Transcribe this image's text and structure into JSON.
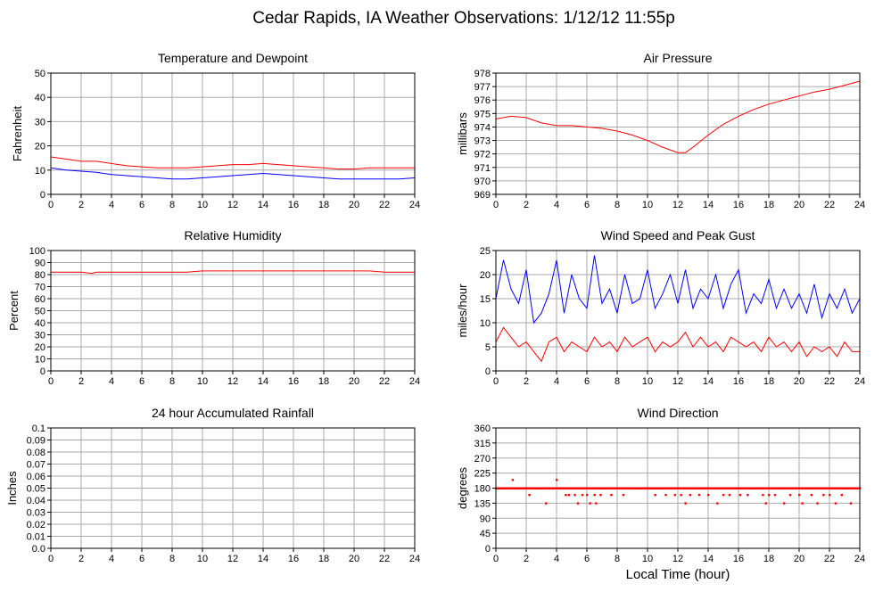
{
  "page": {
    "title": "Cedar Rapids, IA Weather Observations: 1/12/12 11:55p",
    "xlabel": "Local Time (hour)",
    "colors": {
      "red": "#ff0000",
      "blue": "#0000ff",
      "grid": "#aaaaaa",
      "frame": "#000000"
    }
  },
  "chart_data": [
    {
      "id": "temp",
      "type": "line",
      "title": "Temperature and Dewpoint",
      "xlabel": "",
      "ylabel": "Fahrenheit",
      "xlim": [
        0,
        24
      ],
      "ylim": [
        0,
        55
      ],
      "xticks": [
        "0",
        "2",
        "4",
        "6",
        "8",
        "10",
        "12",
        "14",
        "16",
        "18",
        "20",
        "22",
        "24"
      ],
      "yticks": [
        "0",
        "10",
        "20",
        "30",
        "40",
        "50"
      ],
      "grid": true,
      "series": [
        {
          "color": "#ff0000",
          "x": [
            0,
            1,
            2,
            3,
            4,
            5,
            6,
            7,
            8,
            9,
            10,
            11,
            12,
            13,
            14,
            15,
            16,
            17,
            18,
            19,
            20,
            21,
            22,
            23,
            24
          ],
          "values": [
            17,
            16,
            15,
            15,
            14,
            13,
            12.5,
            12,
            12,
            12,
            12.5,
            13,
            13.5,
            13.5,
            14,
            13.5,
            13,
            12.5,
            12,
            11.5,
            11.5,
            12,
            12,
            12,
            12
          ]
        },
        {
          "color": "#0000ff",
          "x": [
            0,
            1,
            2,
            3,
            4,
            5,
            6,
            7,
            8,
            9,
            10,
            11,
            12,
            13,
            14,
            15,
            16,
            17,
            18,
            19,
            20,
            21,
            22,
            23,
            24
          ],
          "values": [
            12,
            11,
            10.5,
            10,
            9,
            8.5,
            8,
            7.5,
            7,
            7,
            7.5,
            8,
            8.5,
            9,
            9.5,
            9,
            8.5,
            8,
            7.5,
            7,
            7,
            7,
            7,
            7,
            7.5
          ]
        }
      ]
    },
    {
      "id": "pressure",
      "type": "line",
      "title": "Air Pressure",
      "xlabel": "",
      "ylabel": "millibars",
      "xlim": [
        0,
        24
      ],
      "ylim": [
        969,
        978
      ],
      "xticks": [
        "0",
        "2",
        "4",
        "6",
        "8",
        "10",
        "12",
        "14",
        "16",
        "18",
        "20",
        "22",
        "24"
      ],
      "yticks": [
        "969",
        "970",
        "971",
        "972",
        "973",
        "974",
        "975",
        "976",
        "977",
        "978"
      ],
      "grid": true,
      "series": [
        {
          "color": "#ff0000",
          "x": [
            0,
            1,
            2,
            3,
            4,
            5,
            6,
            7,
            8,
            9,
            10,
            11,
            12,
            12.5,
            13,
            14,
            15,
            16,
            17,
            18,
            19,
            20,
            21,
            22,
            23,
            24
          ],
          "values": [
            974.6,
            974.8,
            974.7,
            974.3,
            974.1,
            974.1,
            974.0,
            973.9,
            973.7,
            973.4,
            973.0,
            972.5,
            972.1,
            972.1,
            972.5,
            973.4,
            974.2,
            974.8,
            975.3,
            975.7,
            976.0,
            976.3,
            976.6,
            976.8,
            977.1,
            977.4
          ]
        }
      ]
    },
    {
      "id": "humidity",
      "type": "line",
      "title": "Relative Humidity",
      "xlabel": "",
      "ylabel": "Percent",
      "xlim": [
        0,
        24
      ],
      "ylim": [
        0,
        100
      ],
      "xticks": [
        "0",
        "2",
        "4",
        "6",
        "8",
        "10",
        "12",
        "14",
        "16",
        "18",
        "20",
        "22",
        "24"
      ],
      "yticks": [
        "0",
        "10",
        "20",
        "30",
        "40",
        "50",
        "60",
        "70",
        "80",
        "90",
        "100"
      ],
      "grid": true,
      "series": [
        {
          "color": "#ff0000",
          "x": [
            0,
            1,
            2,
            2.7,
            3,
            4,
            5,
            6,
            7,
            8,
            9,
            10,
            11,
            12,
            13,
            14,
            15,
            16,
            17,
            18,
            19,
            20,
            21,
            22,
            23,
            24
          ],
          "values": [
            82,
            82,
            82,
            81,
            82,
            82,
            82,
            82,
            82,
            82,
            82,
            83,
            83,
            83,
            83,
            83,
            83,
            83,
            83,
            83,
            83,
            83,
            83,
            82,
            82,
            82
          ]
        }
      ]
    },
    {
      "id": "wind",
      "type": "line",
      "title": "Wind Speed and Peak Gust",
      "xlabel": "",
      "ylabel": "miles/hour",
      "xlim": [
        0,
        24
      ],
      "ylim": [
        0,
        25
      ],
      "xticks": [
        "0",
        "2",
        "4",
        "6",
        "8",
        "10",
        "12",
        "14",
        "16",
        "18",
        "20",
        "22",
        "24"
      ],
      "yticks": [
        "0",
        "5",
        "10",
        "15",
        "20",
        "25"
      ],
      "grid": true,
      "series": [
        {
          "color": "#0000ff",
          "x": [
            0,
            0.5,
            1,
            1.5,
            2,
            2.5,
            3,
            3.5,
            4,
            4.5,
            5,
            5.5,
            6,
            6.5,
            7,
            7.5,
            8,
            8.5,
            9,
            9.5,
            10,
            10.5,
            11,
            11.5,
            12,
            12.5,
            13,
            13.5,
            14,
            14.5,
            15,
            15.5,
            16,
            16.5,
            17,
            17.5,
            18,
            18.5,
            19,
            19.5,
            20,
            20.5,
            21,
            21.5,
            22,
            22.5,
            23,
            23.5,
            24
          ],
          "values": [
            15,
            23,
            17,
            14,
            21,
            10,
            12,
            16,
            23,
            12,
            20,
            15,
            13,
            24,
            14,
            17,
            12,
            20,
            14,
            15,
            21,
            13,
            16,
            20,
            14,
            21,
            13,
            17,
            15,
            20,
            13,
            18,
            21,
            12,
            16,
            14,
            19,
            13,
            17,
            13,
            16,
            12,
            18,
            11,
            16,
            13,
            17,
            12,
            15
          ]
        },
        {
          "color": "#ff0000",
          "x": [
            0,
            0.5,
            1,
            1.5,
            2,
            2.5,
            3,
            3.5,
            4,
            4.5,
            5,
            5.5,
            6,
            6.5,
            7,
            7.5,
            8,
            8.5,
            9,
            9.5,
            10,
            10.5,
            11,
            11.5,
            12,
            12.5,
            13,
            13.5,
            14,
            14.5,
            15,
            15.5,
            16,
            16.5,
            17,
            17.5,
            18,
            18.5,
            19,
            19.5,
            20,
            20.5,
            21,
            21.5,
            22,
            22.5,
            23,
            23.5,
            24
          ],
          "values": [
            6,
            9,
            7,
            5,
            6,
            4,
            2,
            6,
            7,
            4,
            6,
            5,
            4,
            7,
            5,
            6,
            4,
            7,
            5,
            6,
            7,
            4,
            6,
            5,
            6,
            8,
            5,
            7,
            5,
            6,
            4,
            7,
            6,
            5,
            6,
            4,
            7,
            5,
            6,
            4,
            6,
            3,
            5,
            4,
            5,
            3,
            6,
            4,
            4
          ]
        }
      ]
    },
    {
      "id": "rain",
      "type": "line",
      "title": "24 hour Accumulated Rainfall",
      "xlabel": "",
      "ylabel": "Inches",
      "xlim": [
        0,
        24
      ],
      "ylim": [
        0,
        0.1
      ],
      "xticks": [
        "0",
        "2",
        "4",
        "6",
        "8",
        "10",
        "12",
        "14",
        "16",
        "18",
        "20",
        "22",
        "24"
      ],
      "yticks": [
        "0.0",
        "0.01",
        "0.02",
        "0.03",
        "0.04",
        "0.05",
        "0.06",
        "0.07",
        "0.08",
        "0.09",
        "0.1"
      ],
      "grid": true,
      "series": [
        {
          "color": "#ff0000",
          "x": [
            0,
            24
          ],
          "values": [
            0,
            0
          ]
        }
      ]
    },
    {
      "id": "direction",
      "type": "scatter",
      "title": "Wind Direction",
      "xlabel": "",
      "ylabel": "degrees",
      "xlim": [
        0,
        24
      ],
      "ylim": [
        0,
        360
      ],
      "xticks": [
        "0",
        "2",
        "4",
        "6",
        "8",
        "10",
        "12",
        "14",
        "16",
        "18",
        "20",
        "22",
        "24"
      ],
      "yticks": [
        "0",
        "45",
        "90",
        "135",
        "180",
        "225",
        "270",
        "315",
        "360"
      ],
      "grid": true,
      "series": [
        {
          "color": "#ff0000",
          "x": [
            0,
            0.2,
            0.4,
            0.6,
            0.8,
            1.0,
            1.1,
            1.3,
            1.5,
            1.7,
            1.9,
            2.1,
            2.2,
            2.4,
            2.6,
            2.8,
            3.0,
            3.2,
            3.3,
            3.5,
            3.7,
            3.9,
            4.0,
            4.2,
            4.4,
            4.6,
            4.8,
            5.0,
            5.2,
            5.4,
            5.5,
            5.7,
            5.9,
            6.0,
            6.2,
            6.4,
            6.5,
            6.6,
            6.8,
            6.9,
            7.0,
            7.2,
            7.4,
            7.6,
            7.8,
            8.0,
            8.2,
            8.4,
            8.6,
            8.8,
            9.0,
            9.2,
            9.4,
            9.6,
            9.8,
            10.0,
            10.2,
            10.4,
            10.5,
            10.6,
            10.8,
            11.0,
            11.2,
            11.4,
            11.6,
            11.8,
            12.0,
            12.2,
            12.4,
            12.5,
            12.6,
            12.8,
            13.0,
            13.2,
            13.4,
            13.6,
            13.8,
            14.0,
            14.2,
            14.4,
            14.6,
            14.7,
            14.8,
            15.0,
            15.2,
            15.4,
            15.6,
            15.8,
            16.0,
            16.1,
            16.2,
            16.4,
            16.6,
            16.8,
            17.0,
            17.2,
            17.4,
            17.6,
            17.8,
            17.9,
            18.0,
            18.2,
            18.4,
            18.6,
            18.8,
            19.0,
            19.2,
            19.4,
            19.6,
            19.8,
            20.0,
            20.2,
            20.4,
            20.6,
            20.8,
            21.0,
            21.2,
            21.4,
            21.6,
            21.8,
            22.0,
            22.2,
            22.4,
            22.6,
            22.8,
            23.0,
            23.2,
            23.4,
            23.6,
            23.8,
            24.0
          ],
          "values": [
            180,
            180,
            180,
            180,
            180,
            180,
            205,
            180,
            180,
            180,
            180,
            180,
            160,
            180,
            180,
            180,
            180,
            180,
            135,
            180,
            180,
            180,
            205,
            180,
            180,
            160,
            160,
            180,
            160,
            135,
            180,
            160,
            180,
            160,
            135,
            180,
            160,
            135,
            180,
            160,
            180,
            180,
            180,
            160,
            180,
            180,
            180,
            160,
            180,
            180,
            180,
            180,
            180,
            180,
            180,
            180,
            180,
            180,
            160,
            180,
            180,
            180,
            160,
            180,
            180,
            160,
            180,
            160,
            180,
            135,
            180,
            160,
            180,
            180,
            160,
            180,
            180,
            160,
            180,
            180,
            135,
            180,
            180,
            160,
            180,
            160,
            180,
            180,
            180,
            160,
            180,
            180,
            160,
            180,
            180,
            180,
            180,
            160,
            135,
            180,
            160,
            180,
            160,
            180,
            180,
            135,
            180,
            160,
            180,
            180,
            160,
            135,
            180,
            180,
            160,
            180,
            135,
            180,
            160,
            180,
            160,
            180,
            135,
            180,
            160,
            180,
            180,
            135,
            180,
            180,
            180
          ]
        }
      ]
    }
  ]
}
